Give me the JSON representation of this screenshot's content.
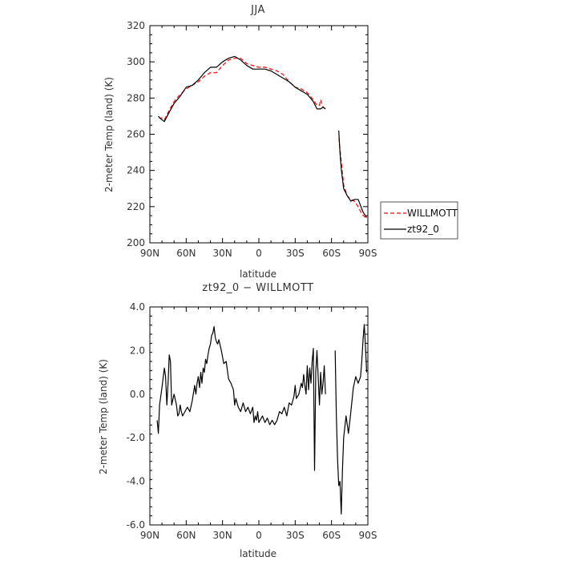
{
  "chart_data": [
    {
      "type": "line",
      "title": "JJA",
      "xlabel": "latitude",
      "ylabel": "2-meter Temp (land) (K)",
      "xlim": [
        90,
        -90
      ],
      "ylim": [
        200,
        320
      ],
      "xticks": [
        {
          "value": 90,
          "label": "90N"
        },
        {
          "value": 60,
          "label": "60N"
        },
        {
          "value": 30,
          "label": "30N"
        },
        {
          "value": 0,
          "label": "0"
        },
        {
          "value": -30,
          "label": "30S"
        },
        {
          "value": -60,
          "label": "60S"
        },
        {
          "value": -90,
          "label": "90S"
        }
      ],
      "yticks": [
        200,
        220,
        240,
        260,
        280,
        300,
        320
      ],
      "legend_placement": "right-bottom-outside",
      "series": [
        {
          "name": "WILLMOTT",
          "color": "#ff0000",
          "dash": "dashed",
          "segments": [
            [
              [
                -88,
                214
              ],
              [
                -85,
                216
              ],
              [
                -82,
                220
              ],
              [
                -79,
                223
              ],
              [
                -76,
                224
              ],
              [
                -73,
                226
              ],
              [
                -70,
                232
              ],
              [
                -68,
                245
              ],
              [
                -66.5,
                255
              ],
              [
                -66,
                259
              ]
            ],
            [
              [
                -55,
                274
              ],
              [
                -53,
                275
              ],
              [
                -51,
                279
              ],
              [
                -50,
                276
              ],
              [
                -48,
                276
              ],
              [
                -45,
                279
              ],
              [
                -40,
                283
              ],
              [
                -35,
                285
              ],
              [
                -30,
                286
              ],
              [
                -25,
                289
              ],
              [
                -20,
                293
              ],
              [
                -15,
                295
              ],
              [
                -10,
                296
              ],
              [
                -5,
                297
              ],
              [
                0,
                297
              ],
              [
                5,
                298
              ],
              [
                10,
                299
              ],
              [
                15,
                302
              ],
              [
                20,
                302
              ],
              [
                25,
                301
              ],
              [
                30,
                298
              ],
              [
                35,
                294
              ],
              [
                40,
                294
              ],
              [
                45,
                292
              ],
              [
                50,
                289
              ],
              [
                55,
                287
              ],
              [
                60,
                285
              ],
              [
                65,
                282
              ],
              [
                70,
                278
              ],
              [
                75,
                272
              ],
              [
                78,
                268
              ],
              [
                80,
                269
              ],
              [
                82,
                269
              ],
              [
                83,
                271
              ]
            ]
          ]
        },
        {
          "name": "zt92_0",
          "color": "#000000",
          "dash": "solid",
          "segments": [
            [
              [
                -89,
                214
              ],
              [
                -86,
                217
              ],
              [
                -82,
                224
              ],
              [
                -79,
                224
              ],
              [
                -76,
                223
              ],
              [
                -73,
                226
              ],
              [
                -70,
                230
              ],
              [
                -68,
                241
              ],
              [
                -67,
                250
              ],
              [
                -66,
                262
              ]
            ],
            [
              [
                -55,
                274
              ],
              [
                -53,
                275
              ],
              [
                -51,
                274
              ],
              [
                -48,
                274
              ],
              [
                -45,
                278
              ],
              [
                -40,
                282
              ],
              [
                -35,
                284
              ],
              [
                -30,
                286
              ],
              [
                -25,
                289
              ],
              [
                -20,
                291
              ],
              [
                -15,
                293
              ],
              [
                -10,
                295
              ],
              [
                -5,
                296
              ],
              [
                0,
                296
              ],
              [
                5,
                296
              ],
              [
                10,
                298
              ],
              [
                15,
                301
              ],
              [
                20,
                303
              ],
              [
                25,
                302
              ],
              [
                30,
                300
              ],
              [
                35,
                297
              ],
              [
                40,
                297
              ],
              [
                45,
                294
              ],
              [
                50,
                290
              ],
              [
                55,
                287
              ],
              [
                60,
                286
              ],
              [
                65,
                281
              ],
              [
                70,
                277
              ],
              [
                75,
                271
              ],
              [
                78,
                267
              ],
              [
                80,
                268
              ],
              [
                82,
                269
              ],
              [
                83,
                270
              ]
            ]
          ]
        }
      ]
    },
    {
      "type": "line",
      "title": "zt92_0 − WILLMOTT",
      "xlabel": "latitude",
      "ylabel": "2-meter Temp (land) (K)",
      "xlim": [
        90,
        -90
      ],
      "ylim": [
        -6,
        4
      ],
      "xticks": [
        {
          "value": 90,
          "label": "90N"
        },
        {
          "value": 60,
          "label": "60N"
        },
        {
          "value": 30,
          "label": "30N"
        },
        {
          "value": 0,
          "label": "0"
        },
        {
          "value": -30,
          "label": "30S"
        },
        {
          "value": -60,
          "label": "60S"
        },
        {
          "value": -90,
          "label": "90S"
        }
      ],
      "yticks": [
        {
          "value": 4,
          "label": "4.0"
        },
        {
          "value": 2,
          "label": "2.0"
        },
        {
          "value": 0,
          "label": "0.0"
        },
        {
          "value": -2,
          "label": "-2.0"
        },
        {
          "value": -4,
          "label": "-4.0"
        },
        {
          "value": -6,
          "label": "-6.0"
        }
      ],
      "series": [
        {
          "name": "",
          "color": "#000000",
          "dash": "solid",
          "segments": [
            [
              [
                -89,
                1.0
              ],
              [
                -88,
                2.2
              ],
              [
                -87,
                3.2
              ],
              [
                -86,
                2.5
              ],
              [
                -85,
                1.5
              ],
              [
                -84,
                0.8
              ],
              [
                -82,
                0.5
              ],
              [
                -80,
                0.8
              ],
              [
                -78,
                0.3
              ],
              [
                -76,
                -0.8
              ],
              [
                -74,
                -1.8
              ],
              [
                -72,
                -1.0
              ],
              [
                -70,
                -2.0
              ],
              [
                -69,
                -3.5
              ],
              [
                -68,
                -5.5
              ],
              [
                -67,
                -4.0
              ],
              [
                -66,
                -4.2
              ],
              [
                -65,
                -3.0
              ],
              [
                -64,
                -1.0
              ],
              [
                -63,
                2.0
              ]
            ],
            [
              [
                -55,
                0.0
              ],
              [
                -54,
                1.3
              ],
              [
                -53,
                0.5
              ],
              [
                -52,
                0.0
              ],
              [
                -51,
                1.0
              ],
              [
                -50,
                -0.5
              ],
              [
                -49,
                0.8
              ],
              [
                -48,
                2.0
              ],
              [
                -47,
                1.0
              ],
              [
                -46,
                -3.5
              ],
              [
                -45,
                2.1
              ],
              [
                -44,
                1.5
              ],
              [
                -43,
                0.5
              ],
              [
                -42,
                1.2
              ],
              [
                -41,
                0.2
              ],
              [
                -40,
                1.3
              ],
              [
                -39,
                0.0
              ],
              [
                -38,
                0.4
              ],
              [
                -37,
                0.9
              ],
              [
                -36,
                0.3
              ],
              [
                -35,
                0.5
              ],
              [
                -33,
                0.0
              ],
              [
                -31,
                -0.2
              ],
              [
                -30,
                0.4
              ],
              [
                -29,
                -0.1
              ],
              [
                -27,
                -0.5
              ],
              [
                -25,
                -0.4
              ],
              [
                -23,
                -1.0
              ],
              [
                -21,
                -0.6
              ],
              [
                -19,
                -0.9
              ],
              [
                -17,
                -0.8
              ],
              [
                -15,
                -1.2
              ],
              [
                -13,
                -1.4
              ],
              [
                -11,
                -1.2
              ],
              [
                -9,
                -1.4
              ],
              [
                -7,
                -1.1
              ],
              [
                -5,
                -1.3
              ],
              [
                -3,
                -1.0
              ],
              [
                -1,
                -1.2
              ],
              [
                0,
                -1.3
              ],
              [
                1,
                -0.8
              ],
              [
                2,
                -1.2
              ],
              [
                3,
                -1.0
              ],
              [
                4,
                -1.3
              ],
              [
                5,
                -0.6
              ],
              [
                7,
                -0.9
              ],
              [
                9,
                -0.6
              ],
              [
                11,
                -0.8
              ],
              [
                13,
                -0.4
              ],
              [
                15,
                -0.8
              ],
              [
                17,
                -0.6
              ],
              [
                19,
                -0.2
              ],
              [
                20,
                -0.5
              ],
              [
                21,
                0.2
              ],
              [
                23,
                0.5
              ],
              [
                25,
                0.7
              ],
              [
                27,
                1.5
              ],
              [
                29,
                1.4
              ],
              [
                31,
                2.0
              ],
              [
                33,
                2.5
              ],
              [
                34,
                2.3
              ],
              [
                35,
                2.4
              ],
              [
                36,
                2.6
              ],
              [
                37,
                3.1
              ],
              [
                38,
                2.8
              ],
              [
                39,
                2.7
              ],
              [
                40,
                2.3
              ],
              [
                41,
                2.1
              ],
              [
                42,
                1.8
              ],
              [
                43,
                1.4
              ],
              [
                44,
                1.6
              ],
              [
                45,
                1.0
              ],
              [
                46,
                1.2
              ],
              [
                47,
                0.5
              ],
              [
                48,
                1.0
              ],
              [
                49,
                0.3
              ],
              [
                50,
                0.8
              ],
              [
                51,
                0.5
              ],
              [
                52,
                0.0
              ],
              [
                53,
                0.4
              ],
              [
                55,
                -0.3
              ],
              [
                57,
                -0.8
              ],
              [
                59,
                -0.6
              ],
              [
                61,
                -0.8
              ],
              [
                63,
                -1.0
              ],
              [
                64,
                -0.8
              ],
              [
                65,
                -0.5
              ],
              [
                66,
                -0.9
              ],
              [
                67,
                -1.0
              ],
              [
                68,
                -0.5
              ],
              [
                70,
                0.0
              ],
              [
                72,
                -0.5
              ],
              [
                73,
                1.5
              ],
              [
                74,
                1.8
              ],
              [
                75,
                0.5
              ],
              [
                76,
                -0.5
              ],
              [
                77,
                0.8
              ],
              [
                78,
                1.2
              ],
              [
                80,
                0.3
              ],
              [
                82,
                -0.5
              ],
              [
                83,
                -1.8
              ],
              [
                84,
                -1.2
              ]
            ]
          ]
        }
      ]
    }
  ]
}
